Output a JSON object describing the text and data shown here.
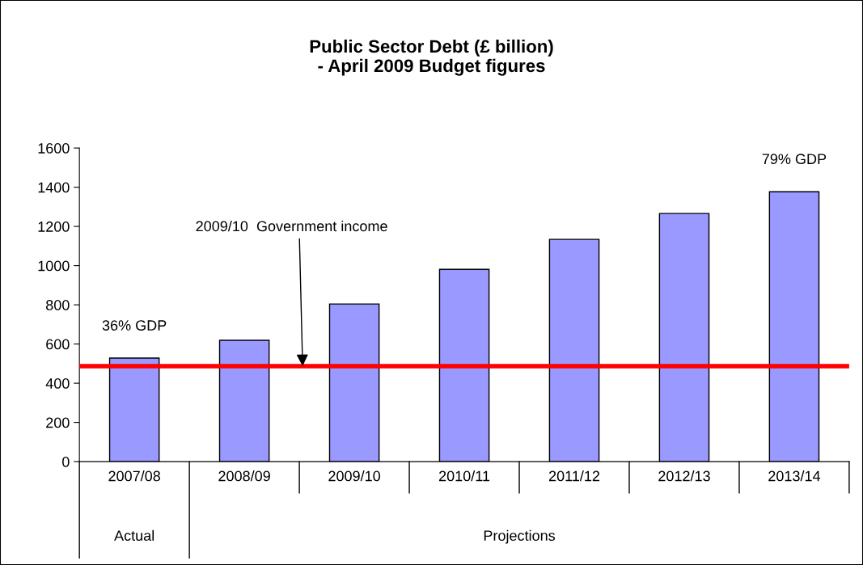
{
  "chart_data": {
    "type": "bar",
    "title": "Public Sector Debt (£ billion)\n- April 2009 Budget figures",
    "categories": [
      "2007/08",
      "2008/09",
      "2009/10",
      "2010/11",
      "2011/12",
      "2012/13",
      "2013/14"
    ],
    "values": [
      528,
      619,
      804,
      981,
      1134,
      1266,
      1377
    ],
    "color": "#9999ff",
    "ylim": [
      0,
      1600
    ],
    "yticks": [
      0,
      200,
      400,
      600,
      800,
      1000,
      1200,
      1400,
      1600
    ],
    "grid": false,
    "ref_lines": [
      {
        "axis": "y",
        "value": 487,
        "label": "2009/10  Government income",
        "color": "#ff0000"
      }
    ],
    "annotations": [
      {
        "text": "36% GDP",
        "x": "2007/08",
        "y": 528
      },
      {
        "text": "79% GDP",
        "x": "2013/14",
        "y": 1377
      },
      "Actual",
      "Projections"
    ]
  }
}
